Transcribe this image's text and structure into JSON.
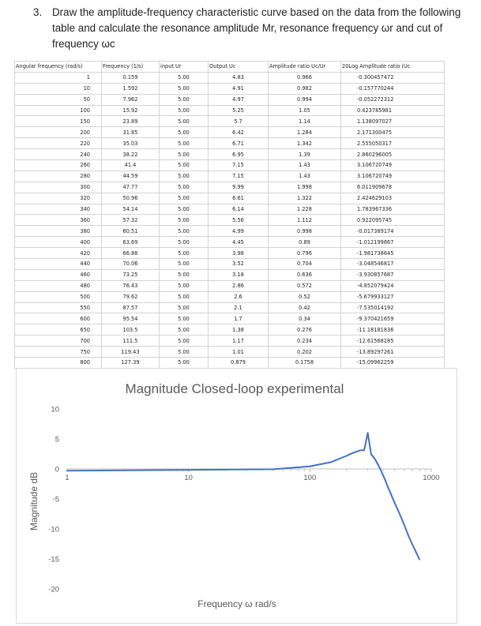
{
  "question": {
    "number": "3.",
    "text": "Draw the amplitude-frequency characteristic curve based on the data from the following table and calculate the resonance amplitude Mr, resonance frequency ωr and cut of frequency ωc"
  },
  "table": {
    "headers": [
      "Angular frequency (rad/s)",
      "Frequency (1/s)",
      "input Ur",
      "Output Uc",
      "Amplitude ratio Uc/Ur",
      "20Log Amplitude ratio (Uc"
    ],
    "rows": [
      [
        "1",
        "0.159",
        "5.00",
        "4.83",
        "0.966",
        "-0.300457472"
      ],
      [
        "10",
        "1.592",
        "5.00",
        "4.91",
        "0.982",
        "-0.157770244"
      ],
      [
        "50",
        "7.962",
        "5.00",
        "4.97",
        "0.994",
        "-0.052272312"
      ],
      [
        "100",
        "15.92",
        "5.00",
        "5.25",
        "1.05",
        "0.423785981"
      ],
      [
        "150",
        "23.89",
        "5.00",
        "5.7",
        "1.14",
        "1.138097027"
      ],
      [
        "200",
        "31.85",
        "5.00",
        "6.42",
        "1.284",
        "2.171300475"
      ],
      [
        "220",
        "35.03",
        "5.00",
        "6.71",
        "1.342",
        "2.555050317"
      ],
      [
        "240",
        "38.22",
        "5.00",
        "6.95",
        "1.39",
        "2.860296005"
      ],
      [
        "260",
        "41.4",
        "5.00",
        "7.15",
        "1.43",
        "3.106720749"
      ],
      [
        "280",
        "44.59",
        "5.00",
        "7.15",
        "1.43",
        "3.106720749"
      ],
      [
        "300",
        "47.77",
        "5.00",
        "9.99",
        "1.998",
        "6.011909678"
      ],
      [
        "320",
        "50.96",
        "5.00",
        "6.61",
        "1.322",
        "2.424629103"
      ],
      [
        "340",
        "54.14",
        "5.00",
        "6.14",
        "1.228",
        "1.783967336"
      ],
      [
        "360",
        "57.32",
        "5.00",
        "5.56",
        "1.112",
        "0.922095745"
      ],
      [
        "380",
        "60.51",
        "5.00",
        "4.99",
        "0.998",
        "-0.017389174"
      ],
      [
        "400",
        "63.69",
        "5.00",
        "4.45",
        "0.89",
        "-1.012199867"
      ],
      [
        "420",
        "66.88",
        "5.00",
        "3.98",
        "0.796",
        "-1.981738645"
      ],
      [
        "440",
        "70.06",
        "5.00",
        "3.52",
        "0.704",
        "-3.048546817"
      ],
      [
        "460",
        "73.25",
        "5.00",
        "3.18",
        "0.636",
        "-3.930857687"
      ],
      [
        "480",
        "76.43",
        "5.00",
        "2.86",
        "0.572",
        "-4.852079424"
      ],
      [
        "500",
        "79.62",
        "5.00",
        "2.6",
        "0.52",
        "-5.679933127"
      ],
      [
        "550",
        "87.57",
        "5.00",
        "2.1",
        "0.42",
        "-7.535014192"
      ],
      [
        "600",
        "95.54",
        "5.00",
        "1.7",
        "0.34",
        "-9.370421659"
      ],
      [
        "650",
        "103.5",
        "5.00",
        "1.38",
        "0.276",
        "-11.18181836"
      ],
      [
        "700",
        "111.5",
        "5.00",
        "1.17",
        "0.234",
        "-12.61568285"
      ],
      [
        "750",
        "119.43",
        "5.00",
        "1.01",
        "0.202",
        "-13.89297261"
      ],
      [
        "800",
        "127.39",
        "5.00",
        "0.879",
        "0.1758",
        "-15.09962259"
      ]
    ]
  },
  "chart_data": {
    "type": "line",
    "title": "Magnitude Closed-loop experimental",
    "xlabel": "Frequency ω rad/s",
    "ylabel": "Magnitude dB",
    "xscale": "log",
    "xlim": [
      1,
      1000
    ],
    "ylim": [
      -20,
      10
    ],
    "x_ticks": [
      "1",
      "10",
      "100",
      "1000"
    ],
    "y_ticks": [
      "10",
      "5",
      "0",
      "-5",
      "-10",
      "-15",
      "-20"
    ],
    "grid": false,
    "legend": "none",
    "series_color": "#4472c4",
    "x": [
      1,
      10,
      50,
      100,
      150,
      200,
      220,
      240,
      260,
      280,
      300,
      320,
      340,
      360,
      380,
      400,
      420,
      440,
      460,
      480,
      500,
      550,
      600,
      650,
      700,
      750,
      800
    ],
    "y": [
      -0.300457472,
      -0.157770244,
      -0.052272312,
      0.423785981,
      1.138097027,
      2.171300475,
      2.555050317,
      2.860296005,
      3.106720749,
      3.106720749,
      6.011909678,
      2.424629103,
      1.783967336,
      0.922095745,
      -0.017389174,
      -1.012199867,
      -1.981738645,
      -3.048546817,
      -3.930857687,
      -4.852079424,
      -5.679933127,
      -7.535014192,
      -9.370421659,
      -11.18181836,
      -12.61568285,
      -13.89297261,
      -15.09962259
    ]
  }
}
